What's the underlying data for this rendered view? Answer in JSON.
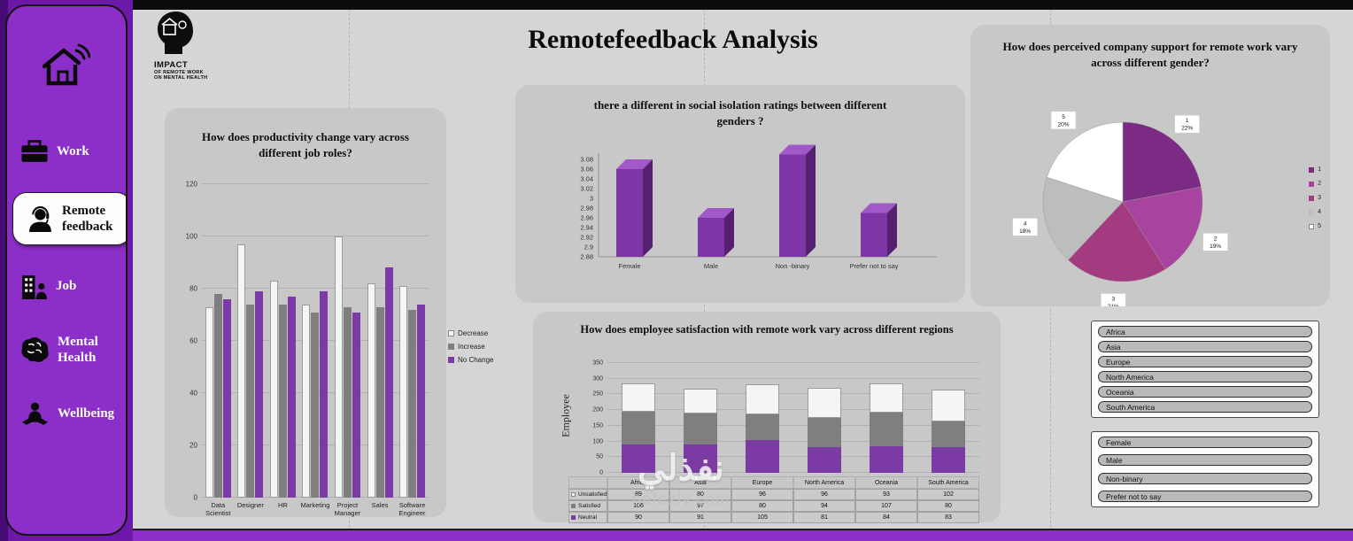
{
  "header": {
    "title": "Remotefeedback Analysis"
  },
  "logo": {
    "lines": [
      "IMPACT",
      "OF REMOTE WORK",
      "ON MENTAL HEALTH"
    ]
  },
  "sidebar": {
    "items": [
      {
        "id": "home",
        "label": "",
        "icon": "home-icon",
        "active": false
      },
      {
        "id": "work",
        "label": "Work",
        "icon": "briefcase-icon",
        "active": false
      },
      {
        "id": "remote-feedback",
        "label": "Remote feedback",
        "icon": "headset-person-icon",
        "active": true
      },
      {
        "id": "job",
        "label": "Job",
        "icon": "building-icon",
        "active": false
      },
      {
        "id": "mental-health",
        "label": "Mental Health",
        "icon": "brain-icon",
        "active": false
      },
      {
        "id": "wellbeing",
        "label": "Wellbeing",
        "icon": "meditation-icon",
        "active": false
      }
    ]
  },
  "chart_data": [
    {
      "id": "productivity",
      "type": "bar",
      "title": "How does productivity change vary across different job roles?",
      "categories": [
        "Data Scientist",
        "Designer",
        "HR",
        "Marketing",
        "Project Manager",
        "Sales",
        "Software Engineer"
      ],
      "series": [
        {
          "name": "Decrease",
          "color": "#f5f5f5",
          "values": [
            73,
            97,
            83,
            74,
            100,
            82,
            81
          ]
        },
        {
          "name": "Increase",
          "color": "#7f7f7f",
          "values": [
            78,
            74,
            74,
            71,
            73,
            73,
            72
          ]
        },
        {
          "name": "No Change",
          "color": "#7c3aa4",
          "values": [
            76,
            79,
            77,
            79,
            71,
            88,
            74
          ]
        }
      ],
      "ylim": [
        0,
        120
      ],
      "yticks": [
        0,
        20,
        40,
        60,
        80,
        100,
        120
      ],
      "legend_position": "right",
      "grid": true
    },
    {
      "id": "social-isolation",
      "type": "bar",
      "variant": "3d",
      "title": "there a different in social isolation ratings between different genders ?",
      "categories": [
        "Female",
        "Male",
        "Non -binary",
        "Prefer not to say"
      ],
      "values": [
        3.06,
        2.96,
        3.09,
        2.97
      ],
      "ylim": [
        2.88,
        3.1
      ],
      "yticks": [
        3.08,
        3.06,
        3.04,
        3.02,
        3,
        2.98,
        2.96,
        2.94,
        2.92,
        2.9,
        2.88
      ],
      "color": "#7e35a6",
      "grid": false
    },
    {
      "id": "company-support",
      "type": "pie",
      "title": "How does perceived company support for remote work vary across different gender?",
      "slices": [
        {
          "label": "1",
          "pct": 22,
          "color": "#7c2b84"
        },
        {
          "label": "2",
          "pct": 19,
          "color": "#a8449f"
        },
        {
          "label": "3",
          "pct": 21,
          "color": "#a43a80"
        },
        {
          "label": "4",
          "pct": 18,
          "color": "#bdbdbd"
        },
        {
          "label": "5",
          "pct": 20,
          "color": "#ffffff"
        }
      ],
      "legend": [
        "1",
        "2",
        "3",
        "4",
        "5"
      ],
      "legend_position": "right"
    },
    {
      "id": "satisfaction-by-region",
      "type": "stacked-bar",
      "title": "How does employee satisfaction with remote work vary across different regions",
      "ylabel": "Employee",
      "categories": [
        "Africa",
        "Asia",
        "Europe",
        "North America",
        "Oceania",
        "South America"
      ],
      "series": [
        {
          "name": "Unsatisfied",
          "color": "#f5f5f5",
          "values": [
            89,
            80,
            96,
            96,
            93,
            102
          ]
        },
        {
          "name": "Satisfied",
          "color": "#7f7f7f",
          "values": [
            106,
            97,
            80,
            94,
            107,
            80
          ]
        },
        {
          "name": "Neutral",
          "color": "#7c3aa4",
          "values": [
            90,
            91,
            105,
            81,
            84,
            83
          ]
        }
      ],
      "ylim": [
        0,
        350
      ],
      "yticks": [
        0,
        50,
        100,
        150,
        200,
        250,
        300,
        350
      ],
      "table": true
    }
  ],
  "slicers": {
    "region": {
      "items": [
        "Africa",
        "Asia",
        "Europe",
        "North America",
        "Oceania",
        "South America"
      ]
    },
    "gender": {
      "items": [
        "Female",
        "Male",
        "Non-binary",
        "Prefer not to say"
      ]
    }
  },
  "watermark": {
    "arabic": "نفذلي",
    "domain": "nafezly.com"
  }
}
